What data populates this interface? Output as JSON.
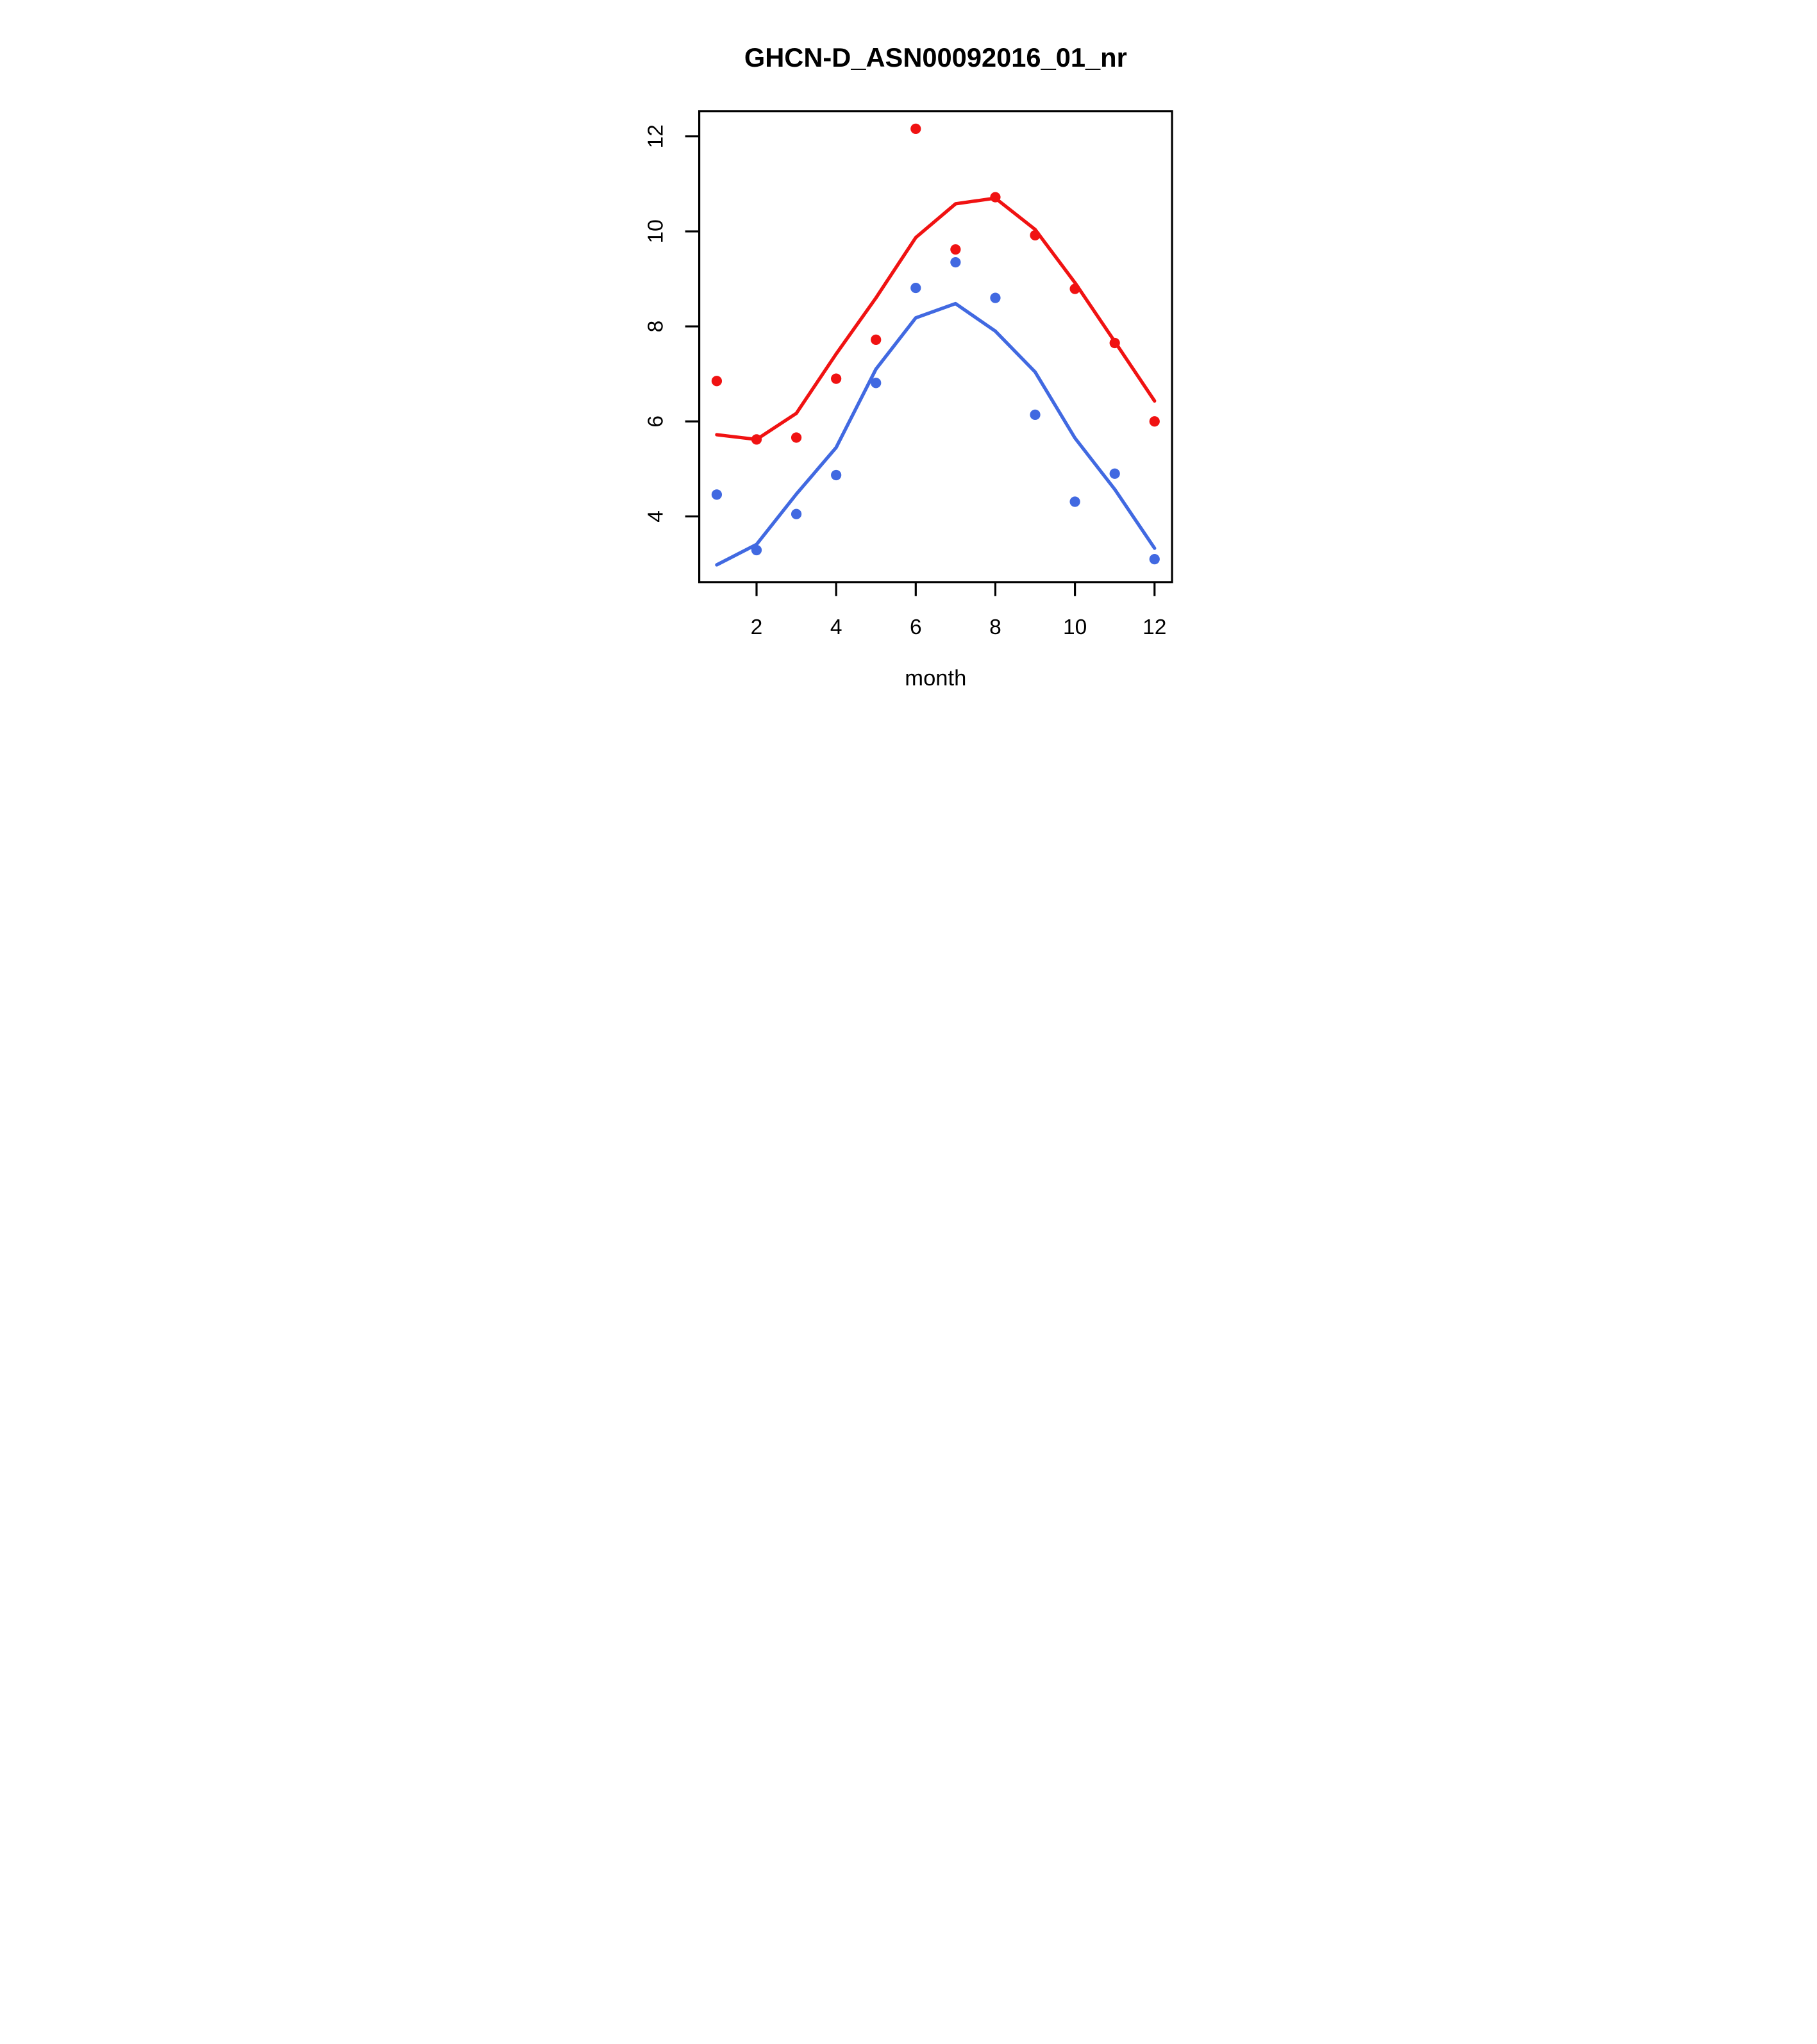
{
  "title": "GHCN-D_ASN00092016_01_nr",
  "xlabel": "month",
  "ylabel": "",
  "colors": {
    "red": "#f01212",
    "blue": "#4169e1",
    "axis": "#000000",
    "background": "#ffffff"
  },
  "chart_data": {
    "type": "scatter",
    "title": "GHCN-D_ASN00092016_01_nr",
    "xlabel": "month",
    "ylabel": "",
    "x": [
      1,
      2,
      3,
      4,
      5,
      6,
      7,
      8,
      9,
      10,
      11,
      12
    ],
    "x_ticks": [
      2,
      4,
      6,
      8,
      10,
      12
    ],
    "y_ticks": [
      4,
      6,
      8,
      10,
      12
    ],
    "xlim": [
      0.56,
      12.44
    ],
    "ylim": [
      2.617,
      12.528
    ],
    "grid": false,
    "legend": "none",
    "series": [
      {
        "name": "red-points",
        "kind": "scatter",
        "color": "#f01212",
        "values": [
          6.85,
          5.62,
          5.66,
          6.9,
          7.72,
          12.16,
          9.62,
          10.72,
          9.92,
          8.79,
          7.65,
          6.0
        ]
      },
      {
        "name": "blue-points",
        "kind": "scatter",
        "color": "#4169e1",
        "values": [
          4.46,
          3.29,
          4.05,
          4.87,
          6.81,
          8.81,
          9.35,
          8.6,
          6.14,
          4.31,
          4.9,
          3.1
        ]
      },
      {
        "name": "red-smooth-line",
        "kind": "line",
        "color": "#f01212",
        "values": [
          5.72,
          5.62,
          6.17,
          7.42,
          8.6,
          9.87,
          10.58,
          10.7,
          10.04,
          8.92,
          7.68,
          6.43
        ]
      },
      {
        "name": "blue-smooth-line",
        "kind": "line",
        "color": "#4169e1",
        "values": [
          2.98,
          3.41,
          4.47,
          5.45,
          7.1,
          8.18,
          8.48,
          7.9,
          7.04,
          5.65,
          4.57,
          3.33
        ]
      }
    ]
  }
}
